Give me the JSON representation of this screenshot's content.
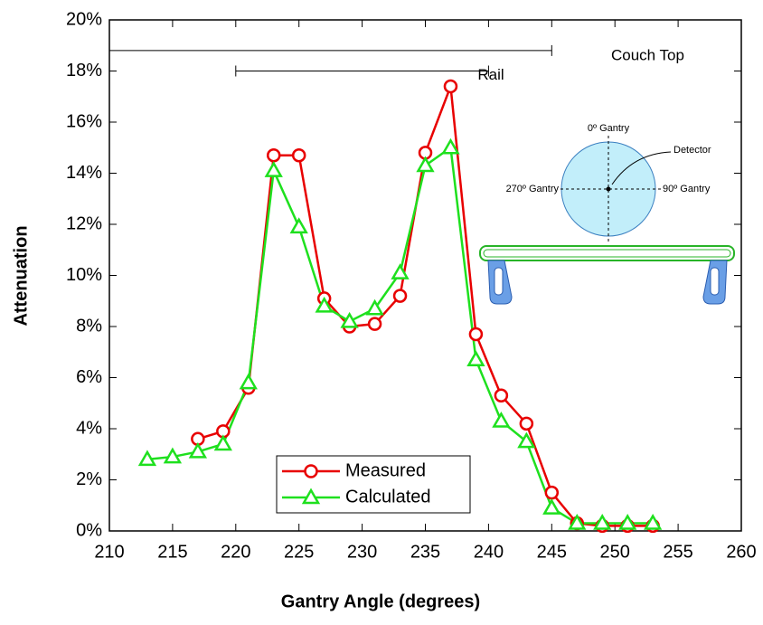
{
  "chart_data": {
    "type": "line",
    "xlabel": "Gantry Angle (degrees)",
    "ylabel": "Attenuation",
    "x": [
      213,
      215,
      217,
      219,
      221,
      223,
      225,
      227,
      229,
      231,
      233,
      235,
      237,
      239,
      241,
      243,
      245,
      247,
      249,
      251,
      253
    ],
    "series": [
      {
        "name": "Measured",
        "color": "#e80000",
        "marker": "circle",
        "values": [
          null,
          null,
          3.6,
          3.9,
          5.6,
          14.7,
          14.7,
          9.1,
          8.0,
          8.1,
          9.2,
          14.8,
          17.4,
          7.7,
          5.3,
          4.2,
          1.5,
          0.3,
          0.2,
          0.2,
          0.2
        ]
      },
      {
        "name": "Calculated",
        "color": "#1ee01e",
        "marker": "triangle",
        "values": [
          2.8,
          2.9,
          3.1,
          3.4,
          5.8,
          14.1,
          11.9,
          8.8,
          8.2,
          8.7,
          10.1,
          14.3,
          15.0,
          6.7,
          4.3,
          3.5,
          0.9,
          0.3,
          0.3,
          0.3,
          0.3
        ]
      }
    ],
    "xlim": [
      210,
      260
    ],
    "xticks": [
      210,
      215,
      220,
      225,
      230,
      235,
      240,
      245,
      250,
      255,
      260
    ],
    "ylim": [
      0,
      20
    ],
    "yticks": [
      {
        "value": 0,
        "label": "0%"
      },
      {
        "value": 2,
        "label": "2%"
      },
      {
        "value": 4,
        "label": "4%"
      },
      {
        "value": 6,
        "label": "6%"
      },
      {
        "value": 8,
        "label": "8%"
      },
      {
        "value": 10,
        "label": "10%"
      },
      {
        "value": 12,
        "label": "12%"
      },
      {
        "value": 14,
        "label": "14%"
      },
      {
        "value": 16,
        "label": "16%"
      },
      {
        "value": 18,
        "label": "18%"
      },
      {
        "value": 20,
        "label": "20%"
      }
    ],
    "legend": "lower center",
    "annotations": [
      {
        "text": "Couch Top",
        "x": [
          210,
          245
        ],
        "y": 18.8
      },
      {
        "text": "Rail",
        "x": [
          220,
          240
        ],
        "y": 18.0
      }
    ],
    "diagram": {
      "top": "0º Gantry",
      "detector": "Detector",
      "left": "270º Gantry",
      "right": "90º Gantry"
    }
  }
}
